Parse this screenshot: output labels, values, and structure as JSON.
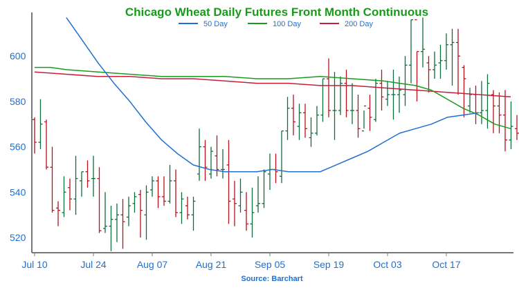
{
  "chart_data": {
    "type": "ohlc",
    "title": "Chicago Wheat Daily Futures Front Month Continuous",
    "source": "Source: Barchart",
    "ylim": [
      514,
      618
    ],
    "xlim": [
      0,
      82
    ],
    "yticks": [
      520,
      540,
      560,
      580,
      600
    ],
    "xticks": [
      {
        "i": 0,
        "label": "Jul 10"
      },
      {
        "i": 10,
        "label": "Jul 24"
      },
      {
        "i": 20,
        "label": "Aug 07"
      },
      {
        "i": 30,
        "label": "Aug 21"
      },
      {
        "i": 40,
        "label": "Sep 05"
      },
      {
        "i": 50,
        "label": "Sep 19"
      },
      {
        "i": 60,
        "label": "Oct 03"
      },
      {
        "i": 70,
        "label": "Oct 17"
      }
    ],
    "colors": {
      "up": "#0d6b3c",
      "down": "#b5121b",
      "ma50": "#1f6fd0",
      "ma100": "#1a9a1a",
      "ma200": "#c41e3a",
      "axis": "#777777"
    },
    "legend": [
      {
        "key": "ma50",
        "name": "50 Day"
      },
      {
        "key": "ma100",
        "name": "100 Day"
      },
      {
        "key": "ma200",
        "name": "200 Day"
      }
    ],
    "bars": [
      [
        572,
        573,
        557,
        562
      ],
      [
        562,
        581,
        559,
        570
      ],
      [
        571,
        572,
        550,
        551
      ],
      [
        551,
        560,
        531,
        532
      ],
      [
        533,
        536,
        525,
        532
      ],
      [
        531,
        547,
        529,
        540
      ],
      [
        542,
        546,
        532,
        537
      ],
      [
        537,
        556,
        530,
        546
      ],
      [
        545,
        549,
        538,
        549
      ],
      [
        549,
        554,
        542,
        545
      ],
      [
        546,
        556,
        538,
        546
      ],
      [
        546,
        551,
        522,
        523
      ],
      [
        524,
        540,
        522,
        525
      ],
      [
        525,
        534,
        514,
        528
      ],
      [
        528,
        535,
        518,
        530
      ],
      [
        530,
        537,
        515,
        527
      ],
      [
        529,
        538,
        525,
        534
      ],
      [
        535,
        540,
        531,
        538
      ],
      [
        539,
        541,
        520,
        532
      ],
      [
        530,
        543,
        519,
        540
      ],
      [
        541,
        547,
        538,
        545
      ],
      [
        545,
        547,
        533,
        538
      ],
      [
        538,
        547,
        534,
        536
      ],
      [
        536,
        552,
        535,
        545
      ],
      [
        545,
        550,
        529,
        531
      ],
      [
        531,
        540,
        526,
        537
      ],
      [
        534,
        538,
        528,
        530
      ],
      [
        530,
        538,
        523,
        536
      ],
      [
        548,
        568,
        545,
        560
      ],
      [
        560,
        563,
        545,
        551
      ],
      [
        548,
        560,
        546,
        558
      ],
      [
        556,
        565,
        547,
        550
      ],
      [
        550,
        559,
        546,
        550
      ],
      [
        552,
        563,
        526,
        536
      ],
      [
        537,
        545,
        525,
        535
      ],
      [
        534,
        546,
        531,
        540
      ],
      [
        532,
        540,
        523,
        526
      ],
      [
        526,
        542,
        520,
        531
      ],
      [
        534,
        547,
        531,
        535
      ],
      [
        535,
        550,
        533,
        549
      ],
      [
        548,
        557,
        541,
        550
      ],
      [
        550,
        557,
        544,
        549
      ],
      [
        547,
        567,
        544,
        567
      ],
      [
        567,
        582,
        563,
        577
      ],
      [
        577,
        583,
        565,
        571
      ],
      [
        569,
        579,
        563,
        575
      ],
      [
        575,
        579,
        564,
        568
      ],
      [
        564,
        573,
        560,
        566
      ],
      [
        566,
        578,
        565,
        574
      ],
      [
        574,
        590,
        571,
        590
      ],
      [
        590,
        599,
        573,
        576
      ],
      [
        576,
        593,
        563,
        576
      ],
      [
        576,
        591,
        574,
        588
      ],
      [
        588,
        594,
        573,
        576
      ],
      [
        576,
        588,
        570,
        576
      ],
      [
        576,
        583,
        564,
        568
      ],
      [
        567,
        576,
        568,
        578
      ],
      [
        577,
        583,
        567,
        573
      ],
      [
        572,
        590,
        571,
        588
      ],
      [
        588,
        594,
        576,
        582
      ],
      [
        581,
        589,
        578,
        583
      ],
      [
        583,
        594,
        572,
        583
      ],
      [
        583,
        591,
        575,
        585
      ],
      [
        583,
        600,
        578,
        596
      ],
      [
        596,
        616,
        588,
        616
      ],
      [
        616,
        602,
        580,
        602
      ],
      [
        602,
        617,
        595,
        603
      ],
      [
        597,
        600,
        584,
        594
      ],
      [
        594,
        602,
        590,
        596
      ],
      [
        597,
        605,
        590,
        598
      ],
      [
        598,
        610,
        594,
        605
      ],
      [
        605,
        612,
        587,
        606
      ],
      [
        606,
        612,
        583,
        600
      ],
      [
        595,
        596,
        573,
        590
      ],
      [
        578,
        586,
        575,
        583
      ],
      [
        583,
        587,
        570,
        575
      ],
      [
        575,
        589,
        570,
        576
      ],
      [
        576,
        592,
        568,
        588
      ],
      [
        583,
        585,
        566,
        578
      ],
      [
        578,
        584,
        566,
        574
      ],
      [
        574,
        585,
        558,
        563
      ],
      [
        563,
        580,
        559,
        569
      ],
      [
        568,
        574,
        563,
        566
      ]
    ],
    "ma50": [
      {
        "i": 10,
        "v": 617
      },
      {
        "i": 15,
        "v": 607
      },
      {
        "i": 20,
        "v": 597
      },
      {
        "i": 25,
        "v": 588
      },
      {
        "i": 30,
        "v": 580
      },
      {
        "i": 35,
        "v": 571
      },
      {
        "i": 40,
        "v": 563
      },
      {
        "i": 45,
        "v": 557
      },
      {
        "i": 50,
        "v": 552
      },
      {
        "i": 55,
        "v": 550
      },
      {
        "i": 60,
        "v": 549
      },
      {
        "i": 65,
        "v": 549
      },
      {
        "i": 70,
        "v": 549
      },
      {
        "i": 75,
        "v": 550
      },
      {
        "i": 80,
        "v": 549
      },
      {
        "i": 85,
        "v": 549
      },
      {
        "i": 90,
        "v": 549
      },
      {
        "i": 95,
        "v": 552
      },
      {
        "i": 100,
        "v": 555
      },
      {
        "i": 105,
        "v": 558
      },
      {
        "i": 110,
        "v": 562
      },
      {
        "i": 115,
        "v": 566
      },
      {
        "i": 120,
        "v": 568
      },
      {
        "i": 125,
        "v": 570
      },
      {
        "i": 130,
        "v": 573
      },
      {
        "i": 135,
        "v": 574
      },
      {
        "i": 140,
        "v": 575
      }
    ],
    "ma100": [
      {
        "i": 0,
        "v": 595
      },
      {
        "i": 5,
        "v": 595
      },
      {
        "i": 10,
        "v": 594
      },
      {
        "i": 20,
        "v": 593
      },
      {
        "i": 30,
        "v": 592
      },
      {
        "i": 40,
        "v": 591
      },
      {
        "i": 50,
        "v": 591
      },
      {
        "i": 60,
        "v": 591
      },
      {
        "i": 70,
        "v": 590
      },
      {
        "i": 80,
        "v": 590
      },
      {
        "i": 90,
        "v": 591
      },
      {
        "i": 100,
        "v": 590
      },
      {
        "i": 110,
        "v": 589
      },
      {
        "i": 115,
        "v": 588
      },
      {
        "i": 120,
        "v": 587
      },
      {
        "i": 125,
        "v": 585
      },
      {
        "i": 130,
        "v": 581
      },
      {
        "i": 135,
        "v": 577
      },
      {
        "i": 140,
        "v": 574
      },
      {
        "i": 145,
        "v": 570
      },
      {
        "i": 150,
        "v": 568
      }
    ],
    "ma200": [
      {
        "i": 0,
        "v": 593
      },
      {
        "i": 10,
        "v": 592
      },
      {
        "i": 20,
        "v": 591
      },
      {
        "i": 30,
        "v": 591
      },
      {
        "i": 40,
        "v": 590
      },
      {
        "i": 50,
        "v": 590
      },
      {
        "i": 60,
        "v": 589
      },
      {
        "i": 70,
        "v": 588
      },
      {
        "i": 80,
        "v": 588
      },
      {
        "i": 90,
        "v": 587
      },
      {
        "i": 100,
        "v": 587
      },
      {
        "i": 110,
        "v": 586
      },
      {
        "i": 120,
        "v": 585
      },
      {
        "i": 130,
        "v": 584
      },
      {
        "i": 140,
        "v": 583
      },
      {
        "i": 150,
        "v": 582
      }
    ]
  }
}
